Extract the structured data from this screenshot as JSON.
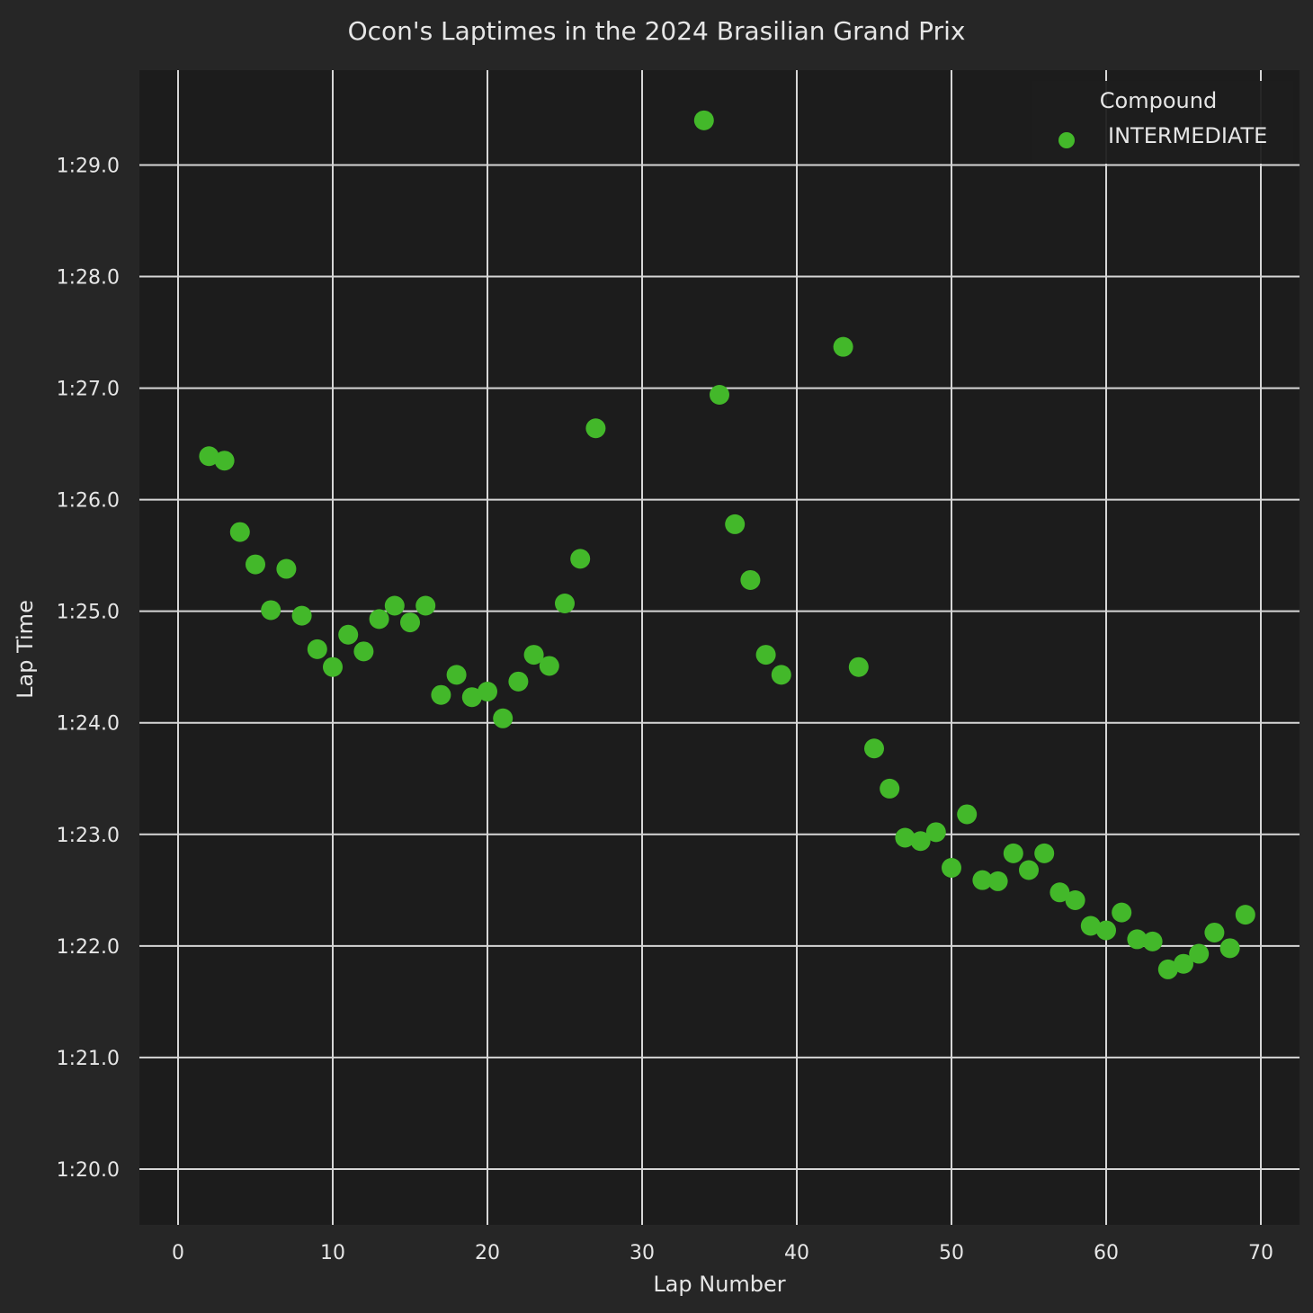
{
  "chart_data": {
    "type": "scatter",
    "title": "Ocon's Laptimes in the 2024 Brasilian Grand Prix",
    "xlabel": "Lap Number",
    "ylabel": "Lap Time",
    "xlim": [
      -2.5,
      72.5
    ],
    "ylim": [
      79.5,
      89.85
    ],
    "xticks": [
      0,
      10,
      20,
      30,
      40,
      50,
      60,
      70
    ],
    "xtick_labels": [
      "0",
      "10",
      "20",
      "30",
      "40",
      "50",
      "60",
      "70"
    ],
    "yticks": [
      80,
      81,
      82,
      83,
      84,
      85,
      86,
      87,
      88,
      89
    ],
    "ytick_labels": [
      "1:20.0",
      "1:21.0",
      "1:22.0",
      "1:23.0",
      "1:24.0",
      "1:25.0",
      "1:26.0",
      "1:27.0",
      "1:28.0",
      "1:29.0"
    ],
    "grid": true,
    "legend": {
      "title": "Compound",
      "position": "top-right"
    },
    "colors": {
      "background": "#262626",
      "plot_area": "#1c1c1c",
      "grid": "#d6d6d6",
      "text": "#e6e6e6"
    },
    "series": [
      {
        "name": "INTERMEDIATE",
        "color": "#43b82a",
        "x": [
          2,
          3,
          4,
          5,
          6,
          7,
          8,
          9,
          10,
          11,
          12,
          13,
          14,
          15,
          16,
          17,
          18,
          19,
          20,
          21,
          22,
          23,
          24,
          25,
          26,
          27,
          34,
          35,
          36,
          37,
          38,
          39,
          43,
          44,
          45,
          46,
          47,
          48,
          49,
          50,
          51,
          52,
          53,
          54,
          55,
          56,
          57,
          58,
          59,
          60,
          61,
          62,
          63,
          64,
          65,
          66,
          67,
          68,
          69
        ],
        "y": [
          86.39,
          86.35,
          85.71,
          85.42,
          85.01,
          85.38,
          84.96,
          84.66,
          84.5,
          84.79,
          84.64,
          84.93,
          85.05,
          84.9,
          85.05,
          84.25,
          84.43,
          84.23,
          84.28,
          84.04,
          84.37,
          84.61,
          84.51,
          85.07,
          85.47,
          86.64,
          89.4,
          86.94,
          85.78,
          85.28,
          84.61,
          84.43,
          87.37,
          84.5,
          83.77,
          83.41,
          82.97,
          82.94,
          83.02,
          82.7,
          83.18,
          82.59,
          82.58,
          82.83,
          82.68,
          82.83,
          82.48,
          82.41,
          82.18,
          82.14,
          82.3,
          82.06,
          82.04,
          81.79,
          81.84,
          81.93,
          82.12,
          81.98,
          82.28
        ]
      }
    ]
  }
}
